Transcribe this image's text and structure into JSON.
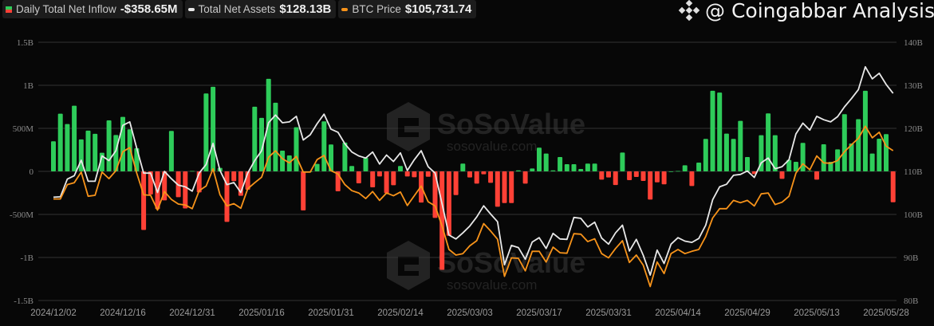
{
  "legend": {
    "inflow": {
      "label": "Daily Total Net Inflow",
      "value": "-$358.65M"
    },
    "assets": {
      "label": "Total Net Assets",
      "value": "$128.13B"
    },
    "btc": {
      "label": "BTC Price",
      "value": "$105,731.74"
    }
  },
  "watermarks": {
    "brand": "SoSoValue",
    "site": "sosovalue.com",
    "credit": "@ Coingabbar Analysis"
  },
  "colors": {
    "inflow_positive": "#2ecc5a",
    "inflow_negative": "#ff4136",
    "assets": "#e8e8e8",
    "btc": "#f7931a",
    "grid": "#333333",
    "background": "#070707"
  },
  "chart_data": {
    "type": "bar+line",
    "left_axis": {
      "ticks": [
        "1.5B",
        "1B",
        "500M",
        "0",
        "-500M",
        "-1B",
        "-1.5B"
      ],
      "range_musd": [
        -1500,
        1500
      ]
    },
    "right_axis": {
      "ticks": [
        "140B",
        "130B",
        "120B",
        "110B",
        "100B",
        "90B",
        "80B"
      ],
      "range_busd": [
        80,
        140
      ]
    },
    "x_ticks": [
      "2024/12/02",
      "2024/12/16",
      "2024/12/31",
      "2025/01/16",
      "2025/01/31",
      "2025/02/14",
      "2025/03/03",
      "2025/03/17",
      "2025/03/31",
      "2025/04/14",
      "2025/04/29",
      "2025/05/13",
      "2025/05/28"
    ],
    "x_tick_every_n_days": 10,
    "grid": true,
    "series": [
      {
        "name": "Daily Total Net Inflow",
        "type": "bar",
        "axis": "left",
        "unit": "M USD",
        "values": [
          349,
          670,
          550,
          763,
          371,
          473,
          436,
          216,
          593,
          423,
          633,
          488,
          269,
          -680,
          -269,
          -439,
          -337,
          470,
          -300,
          -430,
          5,
          -244,
          905,
          983,
          40,
          -587,
          -114,
          -284,
          -213,
          751,
          621,
          1075,
          797,
          241,
          185,
          513,
          -454,
          0,
          87,
          581,
          312,
          -232,
          334,
          62,
          -139,
          158,
          -185,
          -59,
          -253,
          -161,
          62,
          -59,
          -68,
          -362,
          -62,
          -541,
          -1144,
          -748,
          -275,
          90,
          -71,
          -142,
          -34,
          -133,
          -411,
          -368,
          -368,
          12,
          -142,
          34,
          275,
          207,
          12,
          167,
          83,
          83,
          28,
          90,
          90,
          -96,
          -71,
          -158,
          219,
          -102,
          -65,
          -111,
          -328,
          -127,
          -151,
          0,
          5,
          71,
          -170,
          102,
          377,
          936,
          915,
          439,
          377,
          587,
          167,
          -31,
          420,
          674,
          420,
          -87,
          133,
          111,
          331,
          6,
          -96,
          315,
          111,
          256,
          664,
          324,
          606,
          936,
          207,
          380,
          433,
          -358.65
        ]
      },
      {
        "name": "Total Net Assets",
        "type": "line",
        "axis": "right",
        "unit": "B USD",
        "values": [
          104.0,
          104.1,
          108.2,
          109.0,
          112.6,
          107.7,
          107.7,
          113.6,
          112.5,
          114.8,
          120.7,
          121.5,
          115.4,
          109.6,
          109.6,
          105.1,
          110.0,
          108.3,
          106.8,
          106.4,
          105.4,
          109.6,
          111.6,
          116.5,
          110.2,
          106.9,
          107.4,
          105.1,
          109.6,
          112.5,
          114.8,
          121.3,
          123.1,
          121.3,
          121.5,
          122.8,
          117.3,
          118.5,
          121.1,
          123.3,
          119.8,
          119.1,
          116.4,
          114.5,
          113.6,
          113.1,
          114.5,
          111.7,
          113.8,
          112.3,
          114.3,
          110.2,
          112.7,
          114.8,
          111.1,
          109.6,
          102.5,
          95.2,
          94.3,
          95.7,
          97.3,
          99.4,
          102.0,
          100.1,
          98.3,
          88.3,
          92.8,
          92.3,
          89.6,
          93.6,
          94.6,
          92.1,
          95.6,
          94.3,
          94.2,
          99.3,
          99.1,
          97.1,
          98.2,
          94.5,
          93.1,
          95.7,
          97.5,
          91.5,
          94.2,
          90.5,
          85.9,
          91.7,
          88.6,
          93.1,
          94.6,
          93.8,
          93.5,
          94.4,
          97.5,
          103.4,
          106.4,
          107.0,
          109.1,
          109.3,
          110.1,
          108.6,
          112.0,
          113.1,
          110.6,
          111.1,
          112.7,
          118.7,
          121.2,
          119.6,
          122.8,
          122.0,
          121.5,
          122.7,
          125.0,
          126.9,
          129.0,
          134.3,
          131.5,
          132.8,
          130.2,
          128.13
        ]
      },
      {
        "name": "BTC Price",
        "type": "line",
        "axis": "hidden",
        "unit": "thousand USD",
        "values": [
          95.3,
          95.3,
          98.4,
          98.8,
          101.1,
          95.9,
          96.1,
          101.1,
          99.7,
          101.4,
          105.5,
          106.4,
          100.9,
          96.2,
          96.1,
          92.9,
          96.9,
          95.2,
          94.2,
          94.0,
          93.2,
          97.1,
          98.1,
          101.8,
          96.2,
          93.8,
          94.3,
          93.3,
          97.5,
          98.8,
          100.0,
          104.3,
          105.7,
          104.0,
          103.1,
          104.5,
          101.1,
          101.1,
          103.8,
          104.7,
          101.4,
          100.7,
          98.4,
          97.1,
          96.6,
          95.4,
          96.9,
          95.0,
          96.6,
          96.0,
          96.8,
          93.9,
          96.0,
          98.1,
          94.7,
          93.8,
          89.5,
          84.4,
          83.2,
          83.5,
          85.2,
          86.3,
          90.0,
          88.4,
          86.6,
          78.6,
          82.6,
          82.5,
          79.8,
          84.0,
          84.0,
          81.7,
          84.9,
          83.7,
          83.6,
          87.8,
          87.7,
          86.1,
          86.7,
          83.5,
          82.6,
          84.6,
          86.3,
          81.6,
          83.2,
          81.0,
          76.4,
          81.7,
          79.2,
          83.5,
          84.4,
          83.5,
          84.0,
          84.4,
          87.2,
          91.2,
          93.2,
          93.2,
          95.0,
          94.5,
          95.0,
          93.8,
          96.4,
          96.6,
          94.1,
          94.6,
          95.9,
          100.9,
          102.9,
          101.6,
          104.6,
          103.1,
          103.0,
          103.6,
          105.5,
          107.0,
          108.4,
          111.0,
          108.5,
          109.7,
          106.7,
          105.73
        ]
      }
    ]
  }
}
